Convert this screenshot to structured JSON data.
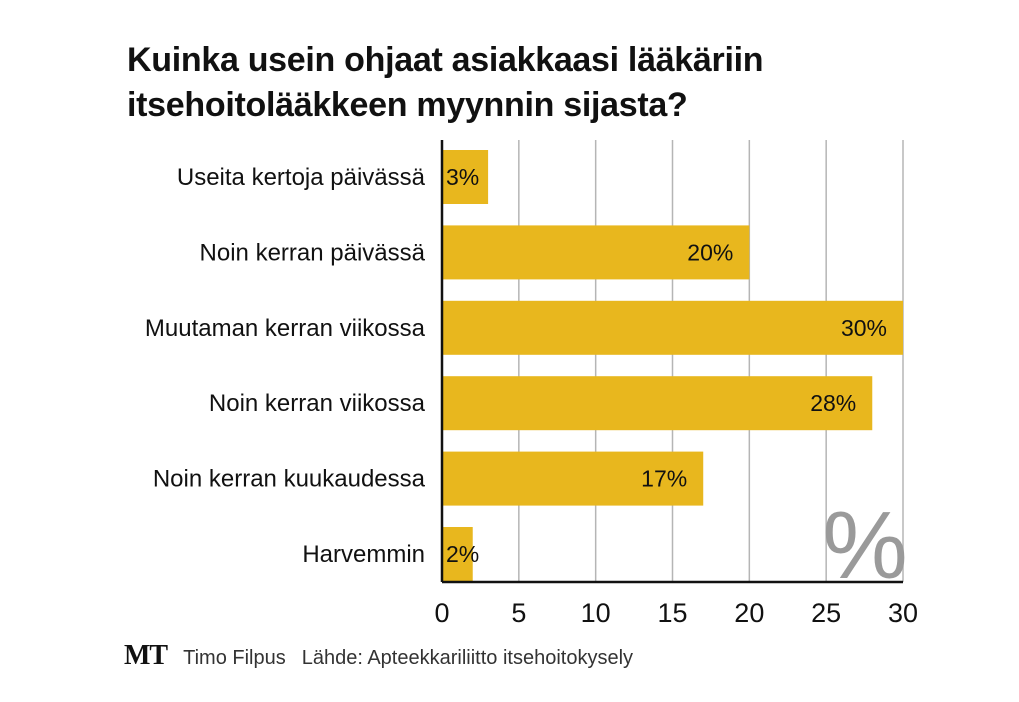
{
  "chart_data": {
    "type": "bar",
    "orientation": "horizontal",
    "title": [
      "Kuinka usein ohjaat asiakkaasi lääkäriin",
      "itsehoitolääkkeen myynnin sijasta?"
    ],
    "categories": [
      "Useita kertoja päivässä",
      "Noin kerran päivässä",
      "Muutaman kerran viikossa",
      "Noin kerran viikossa",
      "Noin kerran kuukaudessa",
      "Harvemmin"
    ],
    "values": [
      3,
      20,
      30,
      28,
      17,
      2
    ],
    "data_labels": [
      "3%",
      "20%",
      "30%",
      "28%",
      "17%",
      "2%"
    ],
    "xlim": [
      0,
      30
    ],
    "xticks": [
      "0",
      "5",
      "10",
      "15",
      "20",
      "25",
      "30"
    ],
    "unit_mark": "%",
    "grid": "vertical",
    "bar_color": "#E8B71E"
  },
  "footer": {
    "logo": "MT",
    "author": "Timo Filpus",
    "source": "Lähde: Apteekkariliitto itsehoitokysely"
  }
}
